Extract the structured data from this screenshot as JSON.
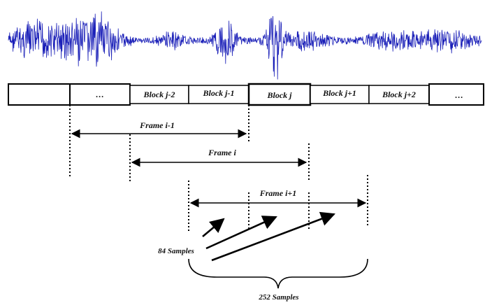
{
  "waveform": {
    "color": "#1a1fb8"
  },
  "blocks": [
    {
      "label": ""
    },
    {
      "label": "…"
    },
    {
      "label": "Block j-2"
    },
    {
      "label": "Block j-1"
    },
    {
      "label": "Block j"
    },
    {
      "label": "Block j+1"
    },
    {
      "label": "Block j+2"
    },
    {
      "label": "…"
    }
  ],
  "frames": [
    {
      "label": "Frame i-1"
    },
    {
      "label": "Frame i"
    },
    {
      "label": "Frame i+1"
    }
  ],
  "annotations": {
    "block_samples": "84 Samples",
    "frame_samples": "252 Samples"
  }
}
